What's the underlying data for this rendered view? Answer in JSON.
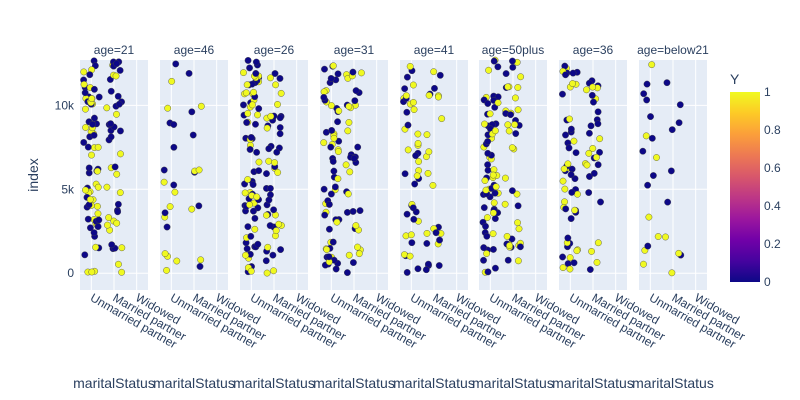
{
  "chart_data": {
    "type": "scatter",
    "facet_variable": "age",
    "facets": [
      {
        "label": "age=21",
        "density": 72
      },
      {
        "label": "age=46",
        "density": 18
      },
      {
        "label": "age=26",
        "density": 80
      },
      {
        "label": "age=31",
        "density": 60
      },
      {
        "label": "age=41",
        "density": 42
      },
      {
        "label": "age=50plus",
        "density": 70
      },
      {
        "label": "age=36",
        "density": 52
      },
      {
        "label": "age=below21",
        "density": 16
      }
    ],
    "x_categories": [
      "Unmarried partner",
      "Married partner",
      "Widowed"
    ],
    "xlabel": "maritalStatus",
    "ylabel": "index",
    "ylim": [
      -1000,
      12700
    ],
    "y_ticks": [
      {
        "value": 0,
        "label": "0"
      },
      {
        "value": 5000,
        "label": "5k"
      },
      {
        "value": 10000,
        "label": "10k"
      }
    ],
    "color_variable": "Y",
    "colorscale": [
      "#0d0887",
      "#46039f",
      "#7201a8",
      "#9c179e",
      "#bd3786",
      "#d8576b",
      "#ed7953",
      "#fb9f3a",
      "#fdca26",
      "#f0f921"
    ],
    "colorbar": {
      "title": "Y",
      "ticks": [
        "0",
        "0.2",
        "0.4",
        "0.6",
        "0.8",
        "1"
      ]
    },
    "colors": {
      "plot_bg": "#e5ecf6",
      "grid": "#ffffff",
      "text": "#2a3f5f",
      "y0": "#0d0887",
      "y1": "#f0f921"
    }
  }
}
